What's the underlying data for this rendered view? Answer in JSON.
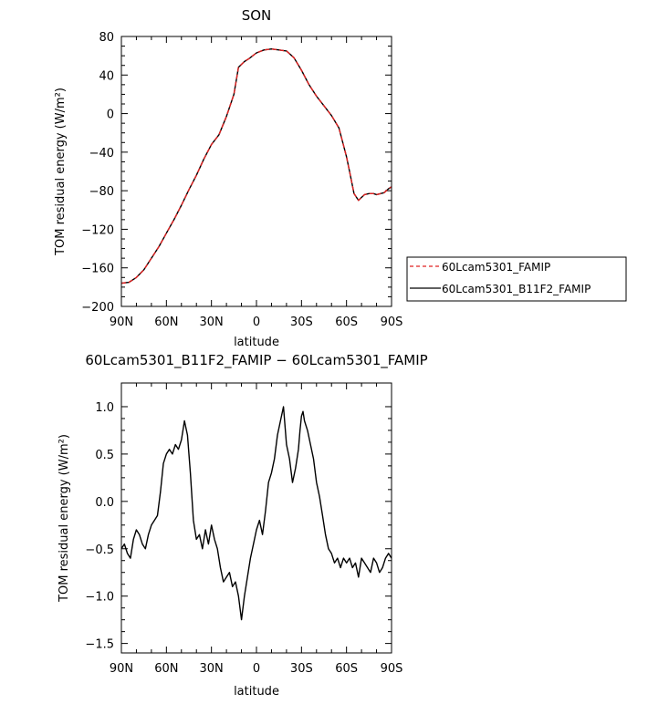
{
  "chart_data": [
    {
      "type": "line",
      "title": "SON",
      "xlabel": "latitude",
      "ylabel": "TOM residual energy  (W/m²)",
      "xlim": [
        90,
        -90
      ],
      "ylim": [
        -200,
        80
      ],
      "x_ticks": [
        90,
        60,
        30,
        0,
        -30,
        -60,
        -90
      ],
      "x_tick_labels": [
        "90N",
        "60N",
        "30N",
        "0",
        "30S",
        "60S",
        "90S"
      ],
      "y_ticks": [
        80,
        40,
        0,
        -40,
        -80,
        -120,
        -160,
        -200
      ],
      "y_tick_labels": [
        "80",
        "40",
        "0",
        "−40",
        "−80",
        "−120",
        "−160",
        "−200"
      ],
      "legend_position": "right",
      "series": [
        {
          "name": "60Lcam5301_FAMIP",
          "color": "#e02020",
          "dash": "dashed",
          "x": [
            90,
            85,
            80,
            75,
            70,
            65,
            60,
            55,
            50,
            45,
            40,
            35,
            30,
            25,
            20,
            15,
            12,
            8,
            5,
            0,
            -5,
            -10,
            -15,
            -20,
            -25,
            -30,
            -35,
            -40,
            -45,
            -50,
            -55,
            -60,
            -62,
            -65,
            -68,
            -70,
            -72,
            -75,
            -78,
            -80,
            -85,
            -88,
            -90
          ],
          "y": [
            -176,
            -175,
            -170,
            -162,
            -150,
            -138,
            -124,
            -110,
            -95,
            -79,
            -64,
            -47,
            -32,
            -22,
            -3,
            20,
            48,
            54,
            57,
            63,
            66,
            67,
            66,
            65,
            58,
            45,
            30,
            18,
            8,
            -2,
            -15,
            -45,
            -60,
            -83,
            -90,
            -87,
            -84,
            -83,
            -83,
            -84,
            -82,
            -78,
            -76
          ]
        },
        {
          "name": "60Lcam5301_B11F2_FAMIP",
          "color": "#000000",
          "dash": "solid",
          "x": [
            90,
            85,
            80,
            75,
            70,
            65,
            60,
            55,
            50,
            45,
            40,
            35,
            30,
            25,
            20,
            15,
            12,
            8,
            5,
            0,
            -5,
            -10,
            -15,
            -20,
            -25,
            -30,
            -35,
            -40,
            -45,
            -50,
            -55,
            -60,
            -62,
            -65,
            -68,
            -70,
            -72,
            -75,
            -78,
            -80,
            -85,
            -88,
            -90
          ],
          "y": [
            -176,
            -175,
            -170,
            -162,
            -150,
            -138,
            -124,
            -110,
            -95,
            -79,
            -64,
            -47,
            -32,
            -22,
            -3,
            20,
            48,
            54,
            57,
            63,
            66,
            67,
            66,
            65,
            58,
            45,
            30,
            18,
            8,
            -2,
            -15,
            -45,
            -60,
            -83,
            -90,
            -87,
            -84,
            -83,
            -83,
            -84,
            -82,
            -78,
            -76
          ]
        }
      ]
    },
    {
      "type": "line",
      "title": "60Lcam5301_B11F2_FAMIP − 60Lcam5301_FAMIP",
      "xlabel": "latitude",
      "ylabel": "TOM residual energy  (W/m²)",
      "xlim": [
        90,
        -90
      ],
      "ylim": [
        -1.6,
        1.25
      ],
      "x_ticks": [
        90,
        60,
        30,
        0,
        -30,
        -60,
        -90
      ],
      "x_tick_labels": [
        "90N",
        "60N",
        "30N",
        "0",
        "30S",
        "60S",
        "90S"
      ],
      "y_ticks": [
        1.0,
        0.5,
        0.0,
        -0.5,
        -1.0,
        -1.5
      ],
      "y_tick_labels": [
        "1.0",
        "0.5",
        "0.0",
        "−0.5",
        "−1.0",
        "−1.5"
      ],
      "series": [
        {
          "name": "",
          "color": "#000000",
          "dash": "solid",
          "x": [
            90,
            88,
            86,
            84,
            82,
            80,
            78,
            76,
            74,
            72,
            70,
            68,
            66,
            64,
            62,
            60,
            58,
            56,
            54,
            52,
            50,
            48,
            46,
            44,
            42,
            40,
            38,
            36,
            34,
            32,
            30,
            28,
            26,
            24,
            22,
            20,
            18,
            16,
            14,
            12,
            10,
            8,
            6,
            4,
            2,
            0,
            -2,
            -4,
            -6,
            -8,
            -10,
            -12,
            -14,
            -16,
            -18,
            -20,
            -22,
            -24,
            -26,
            -28,
            -29,
            -30,
            -31,
            -32,
            -34,
            -36,
            -38,
            -40,
            -42,
            -44,
            -46,
            -48,
            -50,
            -52,
            -54,
            -56,
            -58,
            -60,
            -62,
            -64,
            -66,
            -68,
            -70,
            -72,
            -74,
            -76,
            -78,
            -80,
            -82,
            -84,
            -86,
            -88,
            -90
          ],
          "y": [
            -0.5,
            -0.45,
            -0.55,
            -0.6,
            -0.4,
            -0.3,
            -0.35,
            -0.45,
            -0.5,
            -0.35,
            -0.25,
            -0.2,
            -0.15,
            0.1,
            0.4,
            0.5,
            0.55,
            0.5,
            0.6,
            0.55,
            0.65,
            0.85,
            0.7,
            0.3,
            -0.2,
            -0.4,
            -0.35,
            -0.5,
            -0.3,
            -0.45,
            -0.25,
            -0.4,
            -0.5,
            -0.7,
            -0.85,
            -0.8,
            -0.75,
            -0.9,
            -0.85,
            -1.0,
            -1.25,
            -1.0,
            -0.8,
            -0.6,
            -0.45,
            -0.3,
            -0.2,
            -0.35,
            -0.1,
            0.2,
            0.3,
            0.45,
            0.7,
            0.85,
            1.0,
            0.6,
            0.45,
            0.2,
            0.35,
            0.55,
            0.75,
            0.9,
            0.95,
            0.85,
            0.75,
            0.6,
            0.45,
            0.2,
            0.05,
            -0.15,
            -0.35,
            -0.5,
            -0.55,
            -0.65,
            -0.6,
            -0.7,
            -0.6,
            -0.65,
            -0.6,
            -0.7,
            -0.65,
            -0.8,
            -0.6,
            -0.65,
            -0.7,
            -0.75,
            -0.6,
            -0.65,
            -0.75,
            -0.7,
            -0.6,
            -0.55,
            -0.6
          ]
        }
      ]
    }
  ]
}
